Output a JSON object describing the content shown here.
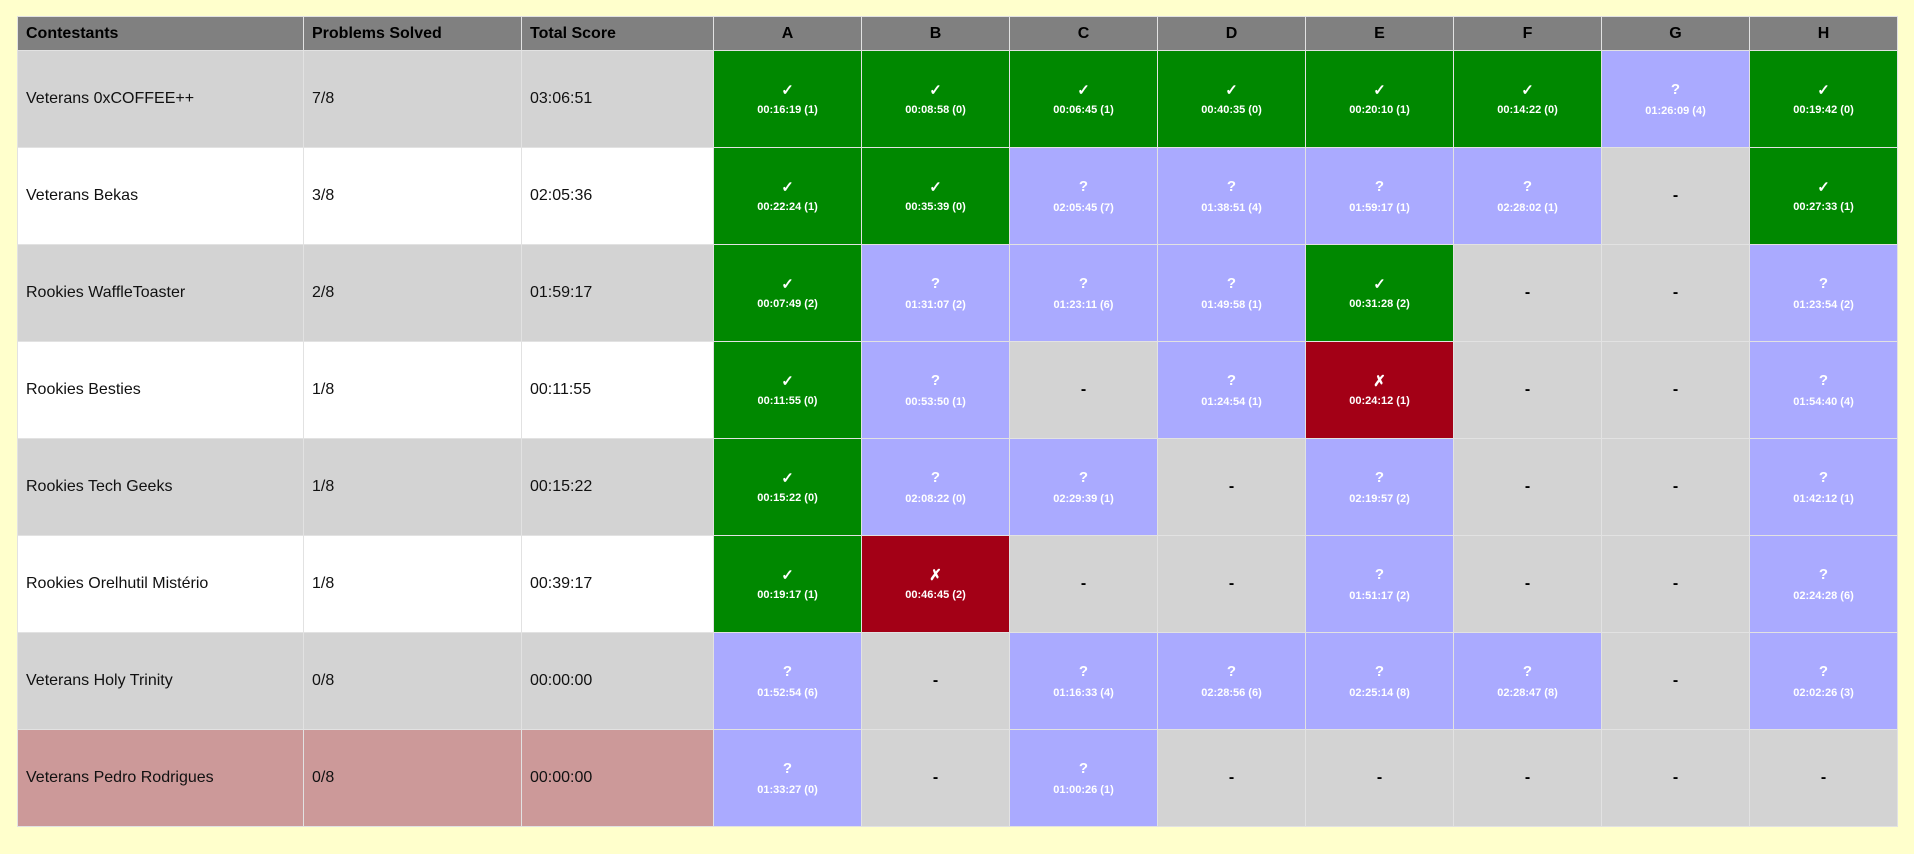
{
  "headers": {
    "contestants": "Contestants",
    "problems_solved": "Problems Solved",
    "total_score": "Total Score",
    "problems": [
      "A",
      "B",
      "C",
      "D",
      "E",
      "F",
      "G",
      "H"
    ]
  },
  "symbols": {
    "solved": "✓",
    "wrong": "✗",
    "pending": "?",
    "none": "-"
  },
  "colors": {
    "page_background": "#ffffcc",
    "header_background": "#808080",
    "solved": "#008800",
    "wrong": "#a30016",
    "pending": "#aaaaff",
    "none": "#d3d3d3",
    "row_odd": "#d3d3d3",
    "row_even": "#ffffff",
    "row_highlight": "#cc9999"
  },
  "rows": [
    {
      "name": "Veterans 0xCOFFEE++",
      "solved": "7/8",
      "score": "03:06:51",
      "style": "odd",
      "cells": [
        {
          "status": "solved",
          "time": "00:16:19 (1)"
        },
        {
          "status": "solved",
          "time": "00:08:58 (0)"
        },
        {
          "status": "solved",
          "time": "00:06:45 (1)"
        },
        {
          "status": "solved",
          "time": "00:40:35 (0)"
        },
        {
          "status": "solved",
          "time": "00:20:10 (1)"
        },
        {
          "status": "solved",
          "time": "00:14:22 (0)"
        },
        {
          "status": "pending",
          "time": "01:26:09 (4)"
        },
        {
          "status": "solved",
          "time": "00:19:42 (0)"
        }
      ]
    },
    {
      "name": "Veterans Bekas",
      "solved": "3/8",
      "score": "02:05:36",
      "style": "even",
      "cells": [
        {
          "status": "solved",
          "time": "00:22:24 (1)"
        },
        {
          "status": "solved",
          "time": "00:35:39 (0)"
        },
        {
          "status": "pending",
          "time": "02:05:45 (7)"
        },
        {
          "status": "pending",
          "time": "01:38:51 (4)"
        },
        {
          "status": "pending",
          "time": "01:59:17 (1)"
        },
        {
          "status": "pending",
          "time": "02:28:02 (1)"
        },
        {
          "status": "none",
          "time": ""
        },
        {
          "status": "solved",
          "time": "00:27:33 (1)"
        }
      ]
    },
    {
      "name": "Rookies WaffleToaster",
      "solved": "2/8",
      "score": "01:59:17",
      "style": "odd",
      "cells": [
        {
          "status": "solved",
          "time": "00:07:49 (2)"
        },
        {
          "status": "pending",
          "time": "01:31:07 (2)"
        },
        {
          "status": "pending",
          "time": "01:23:11 (6)"
        },
        {
          "status": "pending",
          "time": "01:49:58 (1)"
        },
        {
          "status": "solved",
          "time": "00:31:28 (2)"
        },
        {
          "status": "none",
          "time": ""
        },
        {
          "status": "none",
          "time": ""
        },
        {
          "status": "pending",
          "time": "01:23:54 (2)"
        }
      ]
    },
    {
      "name": "Rookies Besties",
      "solved": "1/8",
      "score": "00:11:55",
      "style": "even",
      "cells": [
        {
          "status": "solved",
          "time": "00:11:55 (0)"
        },
        {
          "status": "pending",
          "time": "00:53:50 (1)"
        },
        {
          "status": "none",
          "time": ""
        },
        {
          "status": "pending",
          "time": "01:24:54 (1)"
        },
        {
          "status": "wrong",
          "time": "00:24:12 (1)"
        },
        {
          "status": "none",
          "time": ""
        },
        {
          "status": "none",
          "time": ""
        },
        {
          "status": "pending",
          "time": "01:54:40 (4)"
        }
      ]
    },
    {
      "name": "Rookies Tech Geeks",
      "solved": "1/8",
      "score": "00:15:22",
      "style": "odd",
      "cells": [
        {
          "status": "solved",
          "time": "00:15:22 (0)"
        },
        {
          "status": "pending",
          "time": "02:08:22 (0)"
        },
        {
          "status": "pending",
          "time": "02:29:39 (1)"
        },
        {
          "status": "none",
          "time": ""
        },
        {
          "status": "pending",
          "time": "02:19:57 (2)"
        },
        {
          "status": "none",
          "time": ""
        },
        {
          "status": "none",
          "time": ""
        },
        {
          "status": "pending",
          "time": "01:42:12 (1)"
        }
      ]
    },
    {
      "name": "Rookies Orelhutil Mistério",
      "solved": "1/8",
      "score": "00:39:17",
      "style": "even",
      "cells": [
        {
          "status": "solved",
          "time": "00:19:17 (1)"
        },
        {
          "status": "wrong",
          "time": "00:46:45 (2)"
        },
        {
          "status": "none",
          "time": ""
        },
        {
          "status": "none",
          "time": ""
        },
        {
          "status": "pending",
          "time": "01:51:17 (2)"
        },
        {
          "status": "none",
          "time": ""
        },
        {
          "status": "none",
          "time": ""
        },
        {
          "status": "pending",
          "time": "02:24:28 (6)"
        }
      ]
    },
    {
      "name": "Veterans Holy Trinity",
      "solved": "0/8",
      "score": "00:00:00",
      "style": "odd",
      "cells": [
        {
          "status": "pending",
          "time": "01:52:54 (6)"
        },
        {
          "status": "none",
          "time": ""
        },
        {
          "status": "pending",
          "time": "01:16:33 (4)"
        },
        {
          "status": "pending",
          "time": "02:28:56 (6)"
        },
        {
          "status": "pending",
          "time": "02:25:14 (8)"
        },
        {
          "status": "pending",
          "time": "02:28:47 (8)"
        },
        {
          "status": "none",
          "time": ""
        },
        {
          "status": "pending",
          "time": "02:02:26 (3)"
        }
      ]
    },
    {
      "name": "Veterans Pedro Rodrigues",
      "solved": "0/8",
      "score": "00:00:00",
      "style": "dq",
      "cells": [
        {
          "status": "pending",
          "time": "01:33:27 (0)"
        },
        {
          "status": "none",
          "time": ""
        },
        {
          "status": "pending",
          "time": "01:00:26 (1)"
        },
        {
          "status": "none",
          "time": ""
        },
        {
          "status": "none",
          "time": ""
        },
        {
          "status": "none",
          "time": ""
        },
        {
          "status": "none",
          "time": ""
        },
        {
          "status": "none",
          "time": ""
        }
      ]
    }
  ]
}
